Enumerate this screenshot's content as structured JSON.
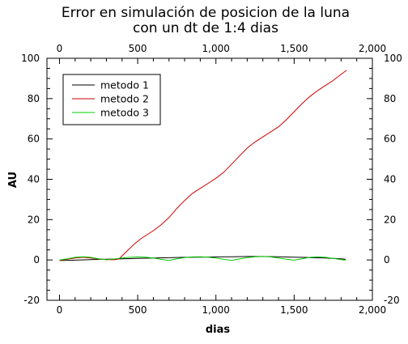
{
  "chart_data": {
    "type": "line",
    "title_lines": [
      "Error en simulación de posicion de la luna",
      "con un dt de 1:4 dias"
    ],
    "xlabel": "dias",
    "ylabel": "AU",
    "xlim": [
      -80,
      2000
    ],
    "ylim": [
      -20,
      100
    ],
    "x_ticks": [
      0,
      500,
      1000,
      1500,
      2000
    ],
    "x_tick_labels": [
      "0",
      "500",
      "1,000",
      "1,500",
      "2,000"
    ],
    "y_ticks": [
      -20,
      0,
      20,
      40,
      60,
      80,
      100
    ],
    "y_tick_labels": [
      "-20",
      "0",
      "20",
      "40",
      "60",
      "80",
      "100"
    ],
    "grid": false,
    "legend_position": "top-left",
    "series": [
      {
        "name": "metodo 1",
        "color": "#000000",
        "x": [
          0,
          100,
          200,
          300,
          380,
          500,
          600,
          700,
          800,
          900,
          1000,
          1100,
          1200,
          1300,
          1400,
          1500,
          1600,
          1700,
          1800,
          1830
        ],
        "y": [
          -0.3,
          -0.1,
          0.2,
          0.4,
          0.5,
          0.8,
          1.0,
          1.1,
          1.3,
          1.4,
          1.5,
          1.6,
          1.7,
          1.7,
          1.6,
          1.4,
          1.2,
          1.0,
          0.6,
          0.3
        ]
      },
      {
        "name": "metodo 2",
        "color": "#cc0000",
        "x": [
          0,
          50,
          100,
          150,
          200,
          250,
          300,
          350,
          380,
          420,
          480,
          520,
          600,
          650,
          700,
          750,
          800,
          850,
          900,
          950,
          1000,
          1050,
          1100,
          1150,
          1200,
          1250,
          1300,
          1350,
          1400,
          1450,
          1500,
          1550,
          1600,
          1650,
          1700,
          1750,
          1800,
          1835
        ],
        "y": [
          -0.2,
          0.4,
          1.0,
          1.3,
          1.0,
          0.5,
          0.2,
          0.1,
          0.5,
          3.5,
          8.0,
          10.5,
          14.5,
          17.5,
          21.0,
          25.5,
          29.5,
          33.0,
          35.5,
          38.0,
          40.5,
          43.5,
          47.5,
          51.5,
          55.5,
          58.5,
          61.0,
          63.5,
          66.0,
          69.5,
          73.5,
          77.5,
          81.0,
          84.0,
          86.5,
          89.0,
          92.0,
          94.0
        ]
      },
      {
        "name": "metodo 3",
        "color": "#00cc00",
        "x": [
          0,
          50,
          100,
          150,
          200,
          250,
          300,
          350,
          400,
          450,
          500,
          550,
          600,
          650,
          700,
          750,
          800,
          850,
          900,
          950,
          1000,
          1050,
          1100,
          1150,
          1200,
          1250,
          1300,
          1350,
          1400,
          1450,
          1500,
          1550,
          1600,
          1650,
          1700,
          1750,
          1800,
          1830
        ],
        "y": [
          0,
          0.6,
          1.3,
          1.6,
          1.3,
          0.6,
          0.1,
          0.5,
          1.0,
          1.3,
          1.5,
          1.4,
          1.0,
          0.3,
          -0.2,
          0.6,
          1.2,
          1.5,
          1.6,
          1.4,
          1.0,
          0.3,
          -0.2,
          0.5,
          1.2,
          1.6,
          1.7,
          1.5,
          1.0,
          0.4,
          -0.1,
          0.6,
          1.3,
          1.5,
          1.3,
          0.8,
          0.2,
          -0.1
        ]
      }
    ]
  }
}
